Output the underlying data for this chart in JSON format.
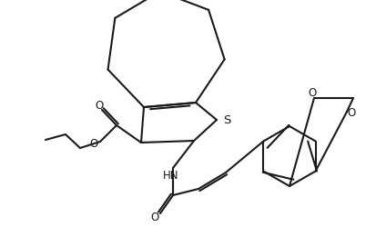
{
  "background_color": "#ffffff",
  "line_color": "#1a1a1a",
  "line_width": 1.5,
  "fig_width": 4.14,
  "fig_height": 2.61,
  "dpi": 100,
  "S_label": "S",
  "HN_label": "HN",
  "O_label": "O",
  "font_size": 8.5
}
